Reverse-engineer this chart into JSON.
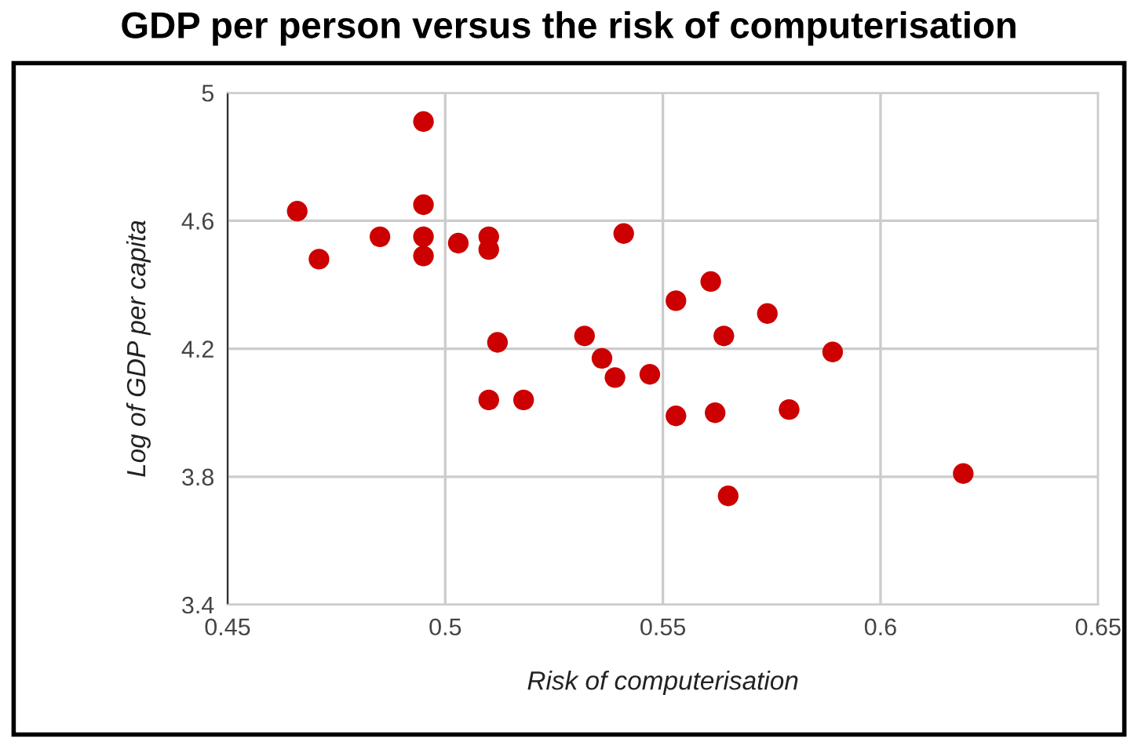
{
  "chart_data": {
    "type": "scatter",
    "title": "GDP per person versus the risk of computerisation",
    "xlabel": "Risk of computerisation",
    "ylabel": "Log of GDP per capita",
    "x": [
      0.466,
      0.471,
      0.485,
      0.495,
      0.495,
      0.495,
      0.495,
      0.503,
      0.51,
      0.51,
      0.541,
      0.512,
      0.51,
      0.518,
      0.532,
      0.536,
      0.539,
      0.547,
      0.553,
      0.553,
      0.561,
      0.564,
      0.562,
      0.565,
      0.574,
      0.579,
      0.589,
      0.619
    ],
    "values": [
      4.63,
      4.48,
      4.55,
      4.91,
      4.65,
      4.55,
      4.49,
      4.53,
      4.55,
      4.51,
      4.56,
      4.22,
      4.04,
      4.04,
      4.24,
      4.17,
      4.11,
      4.12,
      4.35,
      3.99,
      4.41,
      4.24,
      4.0,
      3.74,
      4.31,
      4.01,
      4.19,
      3.81
    ],
    "color": "#cc0000",
    "marker": "circle",
    "grid": true,
    "xlim": [
      0.45,
      0.65
    ],
    "xticks": [
      0.45,
      0.5,
      0.55,
      0.6,
      0.65
    ],
    "ylim": [
      3.4,
      5
    ],
    "yticks": [
      3.4,
      3.8,
      4.2,
      4.6,
      5
    ]
  }
}
